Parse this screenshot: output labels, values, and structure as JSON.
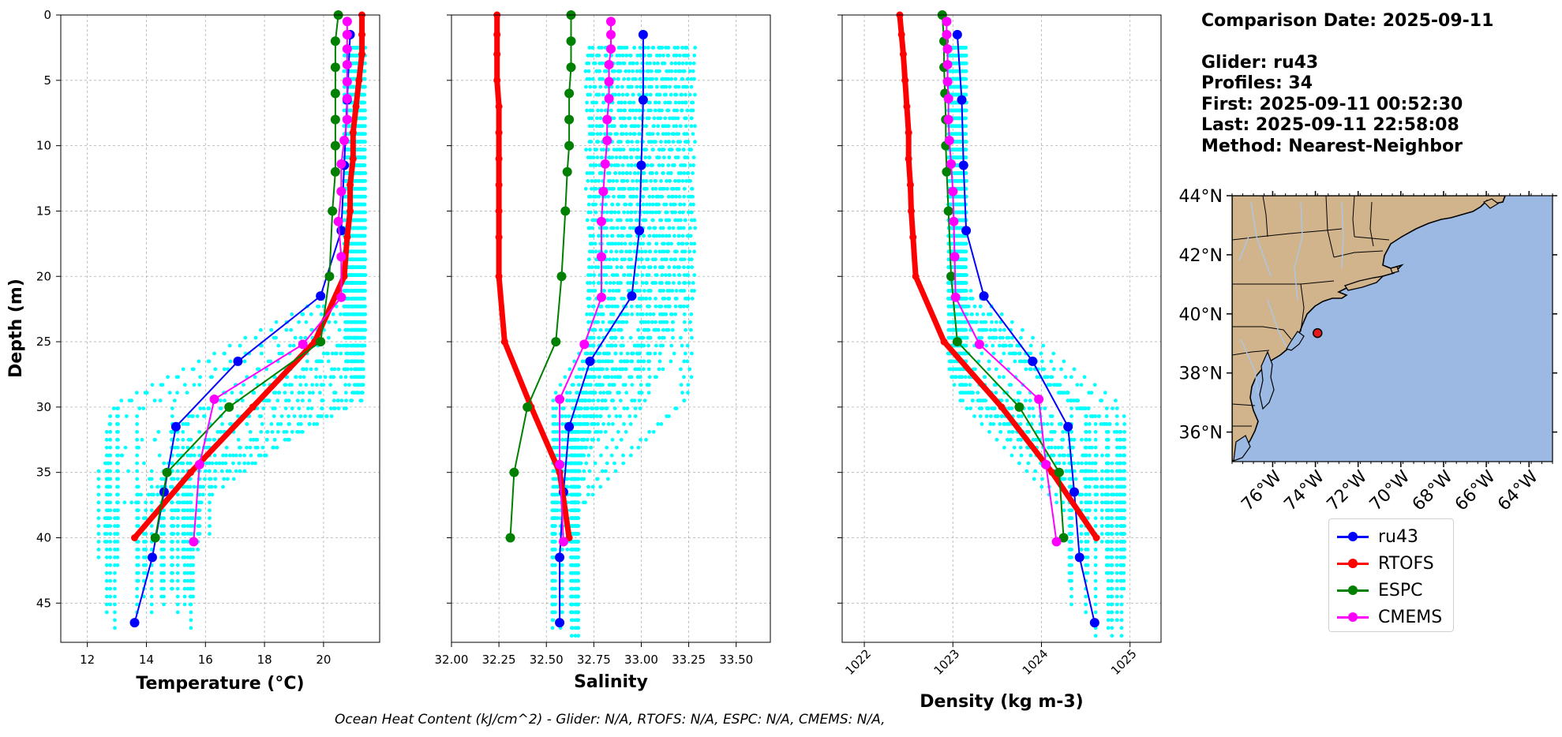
{
  "info": {
    "comparison_date": "Comparison Date: 2025-09-11",
    "glider": "Glider: ru43",
    "profiles": "Profiles: 34",
    "first": "First: 2025-09-11 00:52:30",
    "last": "Last: 2025-09-11 22:58:08",
    "method": "Method: Nearest-Neighbor"
  },
  "footer_text": "Ocean Heat Content (kJ/cm^2) - Glider: N/A,  RTOFS: N/A,  ESPC: N/A,  CMEMS: N/A,",
  "legend": [
    {
      "label": "ru43",
      "color": "#0000ff"
    },
    {
      "label": "RTOFS",
      "color": "#ff0000"
    },
    {
      "label": "ESPC",
      "color": "#008000"
    },
    {
      "label": "CMEMS",
      "color": "#ff00ff"
    }
  ],
  "colors": {
    "glider_raw": "#00ffff",
    "ru43": "#0000ff",
    "RTOFS": "#ff0000",
    "ESPC": "#008000",
    "CMEMS": "#ff00ff",
    "land": "#d2b48c",
    "ocean": "#9bb9e3",
    "rivers": "#aac8e6",
    "marker": "#e41a1c"
  },
  "chart_data": [
    {
      "type": "line",
      "id": "temperature",
      "xlabel": "Temperature (°C)",
      "ylabel": "Depth (m)",
      "xlim": [
        11.1,
        21.9
      ],
      "ylim": [
        48,
        0
      ],
      "xticks": [
        12,
        14,
        16,
        18,
        20
      ],
      "yticks": [
        0,
        5,
        10,
        15,
        20,
        25,
        30,
        35,
        40,
        45
      ],
      "grid": true,
      "series": [
        {
          "name": "ru43",
          "depth": [
            1.5,
            6.5,
            11.5,
            16.5,
            21.5,
            26.5,
            31.5,
            36.5,
            41.5,
            46.5
          ],
          "values": [
            20.9,
            20.8,
            20.7,
            20.6,
            19.9,
            17.1,
            15.0,
            14.6,
            14.2,
            13.6
          ]
        },
        {
          "name": "RTOFS",
          "depth": [
            0,
            1.5,
            3,
            5,
            7,
            9,
            11,
            13,
            15,
            17,
            20,
            25,
            30,
            35,
            40
          ],
          "values": [
            21.3,
            21.3,
            21.3,
            21.2,
            21.1,
            21.0,
            21.0,
            20.9,
            20.9,
            20.8,
            20.7,
            19.7,
            17.6,
            15.5,
            13.6
          ]
        },
        {
          "name": "ESPC",
          "depth": [
            0,
            2,
            4,
            6,
            8,
            10,
            12,
            15,
            20,
            25,
            30,
            35,
            40
          ],
          "values": [
            20.5,
            20.4,
            20.4,
            20.4,
            20.4,
            20.4,
            20.4,
            20.3,
            20.2,
            19.9,
            16.8,
            14.7,
            14.3
          ]
        },
        {
          "name": "CMEMS",
          "depth": [
            0.5,
            1.5,
            2.6,
            3.8,
            5.1,
            6.4,
            8.0,
            9.6,
            11.4,
            13.5,
            15.8,
            18.5,
            21.6,
            25.2,
            29.4,
            34.4,
            40.3
          ],
          "values": [
            20.8,
            20.8,
            20.8,
            20.8,
            20.8,
            20.8,
            20.8,
            20.7,
            20.6,
            20.6,
            20.5,
            20.6,
            20.6,
            19.3,
            16.3,
            15.8,
            15.6
          ]
        }
      ],
      "raw": {
        "name": "glider",
        "depth_range": [
          2.5,
          48
        ],
        "values_near_surface": [
          20.7,
          21.4
        ],
        "values_at_depth": [
          12.3,
          16.2
        ]
      }
    },
    {
      "type": "line",
      "id": "salinity",
      "xlabel": "Salinity",
      "xlim": [
        32.0,
        33.68
      ],
      "ylim": [
        48,
        0
      ],
      "xticks": [
        32.0,
        32.25,
        32.5,
        32.75,
        33.0,
        33.25,
        33.5
      ],
      "grid": true,
      "series": [
        {
          "name": "ru43",
          "depth": [
            1.5,
            6.5,
            11.5,
            16.5,
            21.5,
            26.5,
            31.5,
            36.5,
            41.5,
            46.5
          ],
          "values": [
            33.01,
            33.01,
            33.0,
            32.99,
            32.95,
            32.73,
            32.62,
            32.59,
            32.57,
            32.57
          ]
        },
        {
          "name": "RTOFS",
          "depth": [
            0,
            1.5,
            3,
            5,
            7,
            9,
            11,
            13,
            15,
            17,
            20,
            25,
            30,
            35,
            40
          ],
          "values": [
            32.24,
            32.24,
            32.24,
            32.24,
            32.25,
            32.25,
            32.25,
            32.25,
            32.25,
            32.25,
            32.25,
            32.28,
            32.42,
            32.57,
            32.62
          ]
        },
        {
          "name": "ESPC",
          "depth": [
            0,
            2,
            4,
            6,
            8,
            10,
            12,
            15,
            20,
            25,
            30,
            35,
            40
          ],
          "values": [
            32.63,
            32.63,
            32.63,
            32.62,
            32.62,
            32.62,
            32.61,
            32.6,
            32.58,
            32.55,
            32.4,
            32.33,
            32.31
          ]
        },
        {
          "name": "CMEMS",
          "depth": [
            0.5,
            1.5,
            2.6,
            3.8,
            5.1,
            6.4,
            8.0,
            9.6,
            11.4,
            13.5,
            15.8,
            18.5,
            21.6,
            25.2,
            29.4,
            34.4,
            40.3
          ],
          "values": [
            32.84,
            32.84,
            32.84,
            32.83,
            32.83,
            32.83,
            32.82,
            32.82,
            32.81,
            32.8,
            32.79,
            32.79,
            32.79,
            32.7,
            32.57,
            32.57,
            32.59
          ]
        }
      ],
      "raw": {
        "name": "glider",
        "depth_range": [
          2.5,
          48
        ],
        "values_near_surface": [
          32.72,
          33.27
        ],
        "values_at_depth": [
          32.53,
          32.67
        ]
      }
    },
    {
      "type": "line",
      "id": "density",
      "xlabel": "Density (kg m-3)",
      "xlim": [
        1021.75,
        1025.35
      ],
      "ylim": [
        48,
        0
      ],
      "xticks": [
        1022,
        1023,
        1024,
        1025
      ],
      "grid": true,
      "series": [
        {
          "name": "ru43",
          "depth": [
            1.5,
            6.5,
            11.5,
            16.5,
            21.5,
            26.5,
            31.5,
            36.5,
            41.5,
            46.5
          ],
          "values": [
            1023.05,
            1023.1,
            1023.12,
            1023.15,
            1023.35,
            1023.9,
            1024.3,
            1024.37,
            1024.43,
            1024.6
          ]
        },
        {
          "name": "RTOFS",
          "depth": [
            0,
            1.5,
            3,
            5,
            7,
            9,
            11,
            13,
            15,
            17,
            20,
            25,
            30,
            35,
            40
          ],
          "values": [
            1022.4,
            1022.42,
            1022.44,
            1022.46,
            1022.48,
            1022.5,
            1022.5,
            1022.52,
            1022.53,
            1022.55,
            1022.58,
            1022.9,
            1023.55,
            1024.12,
            1024.62
          ]
        },
        {
          "name": "ESPC",
          "depth": [
            0,
            2,
            4,
            6,
            8,
            10,
            12,
            15,
            20,
            25,
            30,
            35,
            40
          ],
          "values": [
            1022.88,
            1022.9,
            1022.9,
            1022.91,
            1022.92,
            1022.92,
            1022.93,
            1022.95,
            1022.98,
            1023.05,
            1023.75,
            1024.2,
            1024.25
          ]
        },
        {
          "name": "CMEMS",
          "depth": [
            0.5,
            1.5,
            2.6,
            3.8,
            5.1,
            6.4,
            8.0,
            9.6,
            11.4,
            13.5,
            15.8,
            18.5,
            21.6,
            25.2,
            29.4,
            34.4,
            40.3
          ],
          "values": [
            1022.93,
            1022.93,
            1022.94,
            1022.94,
            1022.94,
            1022.95,
            1022.95,
            1022.96,
            1022.98,
            1023.0,
            1023.01,
            1023.02,
            1023.03,
            1023.3,
            1023.97,
            1024.05,
            1024.17
          ]
        }
      ],
      "raw": {
        "name": "glider",
        "depth_range": [
          2.5,
          48
        ],
        "values_near_surface": [
          1022.95,
          1023.15
        ],
        "values_at_depth": [
          1024.3,
          1024.95
        ]
      }
    },
    {
      "type": "map",
      "id": "location-map",
      "lon_range": [
        -77.9,
        -62.9
      ],
      "lat_range": [
        35,
        44
      ],
      "lon_ticks": [
        -76,
        -74,
        -72,
        -70,
        -68,
        -66,
        -64
      ],
      "lon_tick_labels": [
        "76°W",
        "74°W",
        "72°W",
        "70°W",
        "68°W",
        "66°W",
        "64°W"
      ],
      "lat_ticks": [
        36,
        38,
        40,
        42,
        44
      ],
      "lat_tick_labels": [
        "36°N",
        "38°N",
        "40°N",
        "42°N",
        "44°N"
      ],
      "glider_position": {
        "lon": -73.9,
        "lat": 39.35
      }
    }
  ]
}
